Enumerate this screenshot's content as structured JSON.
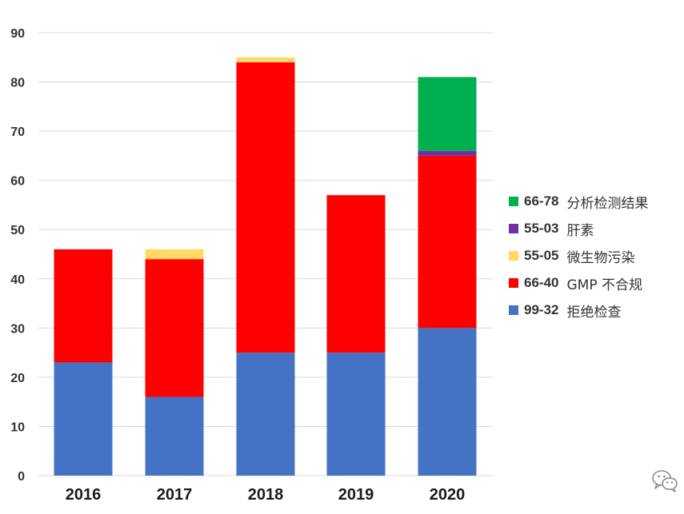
{
  "chart_data": {
    "type": "bar",
    "stacked": true,
    "categories": [
      "2016",
      "2017",
      "2018",
      "2019",
      "2020"
    ],
    "series": [
      {
        "code": "99-32",
        "name": "拒绝检查",
        "color": "#4472C4",
        "values": [
          23,
          16,
          25,
          25,
          30
        ]
      },
      {
        "code": "66-40",
        "name": "GMP 不合规",
        "color": "#FF0000",
        "values": [
          23,
          28,
          59,
          32,
          35
        ]
      },
      {
        "code": "55-05",
        "name": "微生物污染",
        "color": "#FFD966",
        "values": [
          0,
          2,
          1,
          0,
          0
        ]
      },
      {
        "code": "55-03",
        "name": "肝素",
        "color": "#7030A0",
        "values": [
          0,
          0,
          0,
          0,
          1
        ]
      },
      {
        "code": "66-78",
        "name": "分析检测结果",
        "color": "#00B050",
        "values": [
          0,
          0,
          0,
          0,
          15
        ]
      }
    ],
    "ylim": [
      0,
      90
    ],
    "yticks": [
      0,
      10,
      20,
      30,
      40,
      50,
      60,
      70,
      80,
      90
    ],
    "xlabel": "",
    "ylabel": "",
    "grid": true,
    "legend_placement": "right",
    "legend_order": [
      "66-78",
      "55-03",
      "55-05",
      "66-40",
      "99-32"
    ]
  },
  "colors": {
    "grid": "#D9D9D9",
    "axis_text": "#333333",
    "watermark": "#8C8C8C"
  },
  "watermark_icon": "wechat-icon"
}
